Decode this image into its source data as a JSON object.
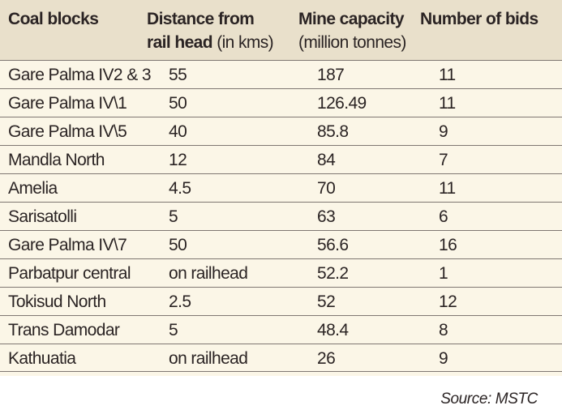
{
  "table": {
    "headers": [
      {
        "main": "Coal blocks",
        "sub_line_main": "",
        "sub": ""
      },
      {
        "main": "Distance from",
        "sub_line_main": "rail head",
        "sub": " (in kms)"
      },
      {
        "main": "Mine capacity",
        "sub_line_main": "",
        "sub": "(million tonnes)"
      },
      {
        "main": "Number of bids",
        "sub_line_main": "",
        "sub": ""
      }
    ],
    "rows": [
      [
        "Gare Palma IV2 & 3",
        "55",
        "187",
        "11"
      ],
      [
        "Gare Palma IV\\1",
        "50",
        "126.49",
        "11"
      ],
      [
        "Gare Palma IV\\5",
        "40",
        "85.8",
        "9"
      ],
      [
        "Mandla North",
        "12",
        "84",
        "7"
      ],
      [
        "Amelia",
        "4.5",
        "70",
        "11"
      ],
      [
        "Sarisatolli",
        "5",
        "63",
        "6"
      ],
      [
        "Gare Palma IV\\7",
        "50",
        "56.6",
        "16"
      ],
      [
        "Parbatpur central",
        "on railhead",
        "52.2",
        "1"
      ],
      [
        "Tokisud North",
        "2.5",
        "52",
        "12"
      ],
      [
        "Trans Damodar",
        "5",
        "48.4",
        "8"
      ],
      [
        "Kathuatia",
        "on railhead",
        "26",
        "9"
      ]
    ]
  },
  "source": "Source: MSTC",
  "colors": {
    "header_background": "#e9e0cb",
    "row_background": "#fbf6e7",
    "row_divider": "#7f7772",
    "text": "#2b2424"
  }
}
